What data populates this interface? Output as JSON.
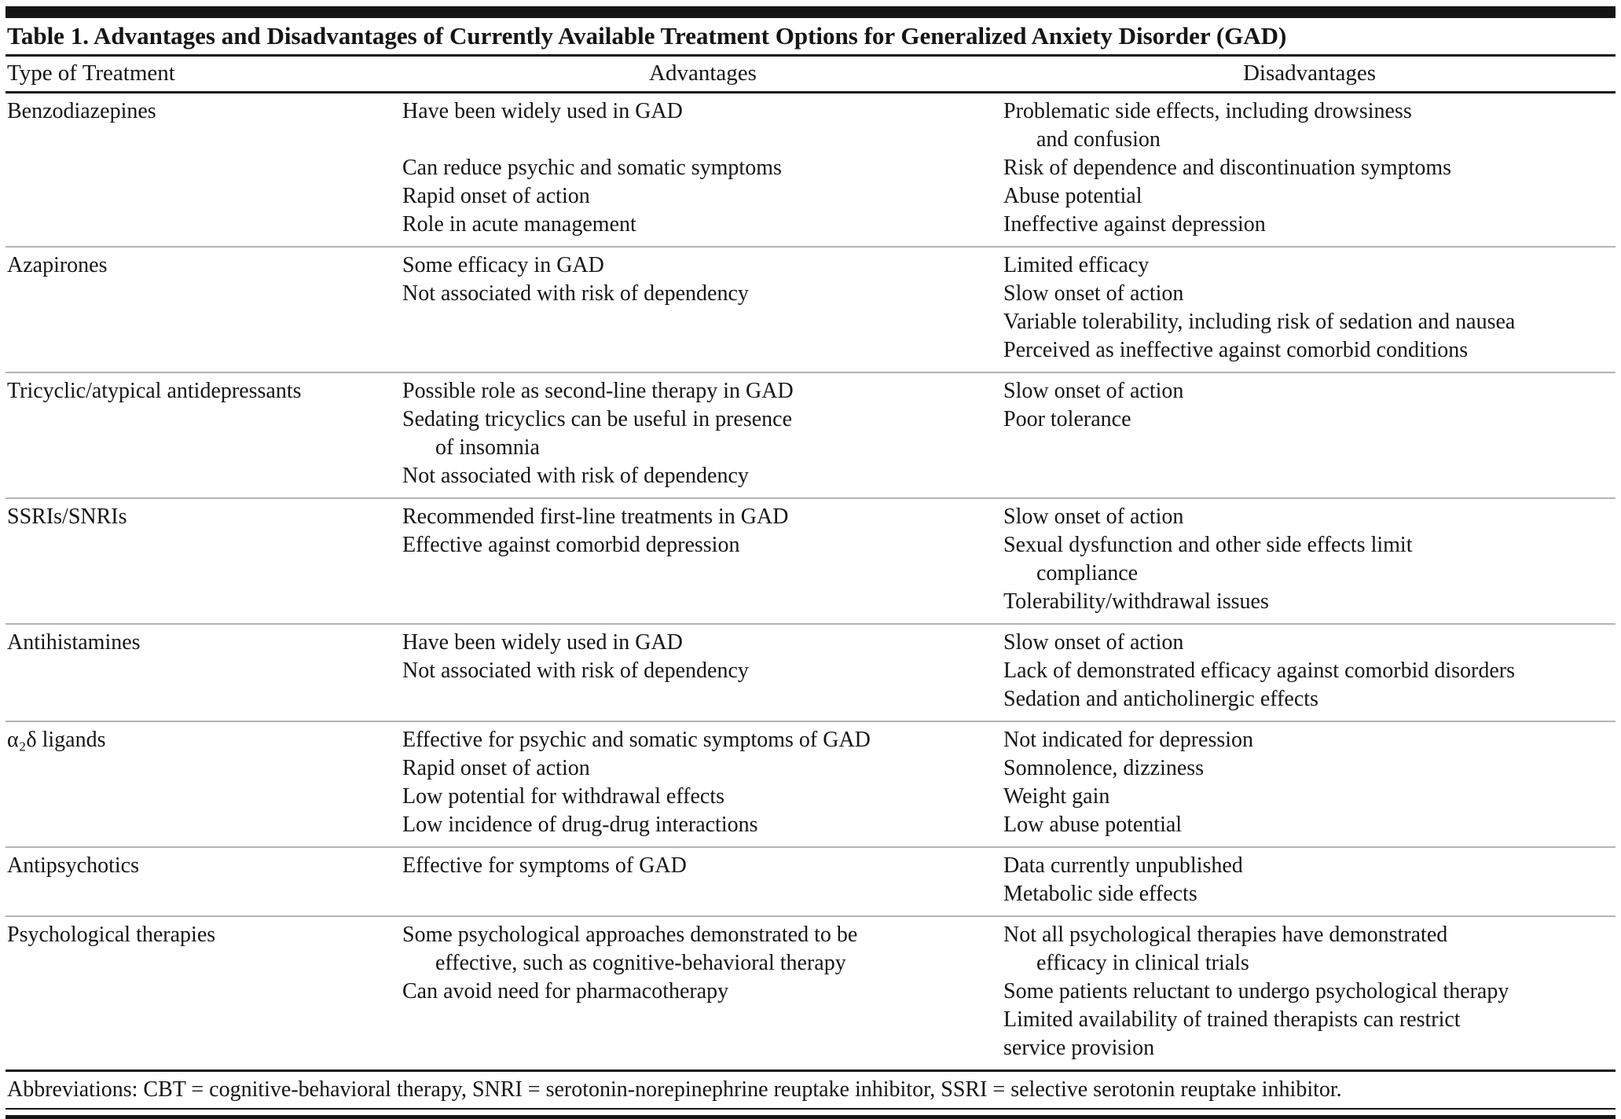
{
  "colors": {
    "text": "#151515",
    "rule_dark": "#151515",
    "rule_light": "#b4b4b4"
  },
  "table": {
    "title": "Table 1. Advantages and Disadvantages of Currently Available Treatment Options for Generalized Anxiety Disorder (GAD)",
    "columns": [
      "Type of Treatment",
      "Advantages",
      "Disadvantages"
    ],
    "rows": [
      {
        "treatment": "Benzodiazepines",
        "advantages": [
          {
            "text": "Have been widely used in GAD"
          },
          {
            "text": ""
          },
          {
            "text": "Can reduce psychic and somatic symptoms"
          },
          {
            "text": "Rapid onset of action"
          },
          {
            "text": "Role in acute management"
          }
        ],
        "disadvantages": [
          {
            "text": "Problematic side effects, including drowsiness"
          },
          {
            "text": "and confusion",
            "indent": true
          },
          {
            "text": "Risk of dependence and discontinuation symptoms"
          },
          {
            "text": "Abuse potential"
          },
          {
            "text": "Ineffective against depression"
          }
        ]
      },
      {
        "treatment": "Azapirones",
        "advantages": [
          {
            "text": "Some efficacy in GAD"
          },
          {
            "text": "Not associated with risk of dependency"
          }
        ],
        "disadvantages": [
          {
            "text": "Limited efficacy"
          },
          {
            "text": "Slow onset of action"
          },
          {
            "text": "Variable tolerability, including risk of sedation and nausea"
          },
          {
            "text": "Perceived as ineffective against comorbid conditions"
          }
        ]
      },
      {
        "treatment": "Tricyclic/atypical antidepressants",
        "advantages": [
          {
            "text": "Possible role as second-line therapy in GAD"
          },
          {
            "text": "Sedating tricyclics can be useful in presence"
          },
          {
            "text": "of insomnia",
            "indent": true
          },
          {
            "text": "Not associated with risk of dependency"
          }
        ],
        "disadvantages": [
          {
            "text": "Slow onset of action"
          },
          {
            "text": "Poor tolerance"
          }
        ]
      },
      {
        "treatment": "SSRIs/SNRIs",
        "advantages": [
          {
            "text": "Recommended first-line treatments in GAD"
          },
          {
            "text": "Effective against comorbid depression"
          }
        ],
        "disadvantages": [
          {
            "text": "Slow onset of action"
          },
          {
            "text": "Sexual dysfunction and other side effects limit"
          },
          {
            "text": "compliance",
            "indent": true
          },
          {
            "text": "Tolerability/withdrawal issues"
          }
        ]
      },
      {
        "treatment": "Antihistamines",
        "advantages": [
          {
            "text": "Have been widely used in GAD"
          },
          {
            "text": "Not associated with risk of dependency"
          }
        ],
        "disadvantages": [
          {
            "text": "Slow onset of action"
          },
          {
            "text": "Lack of demonstrated efficacy against comorbid disorders"
          },
          {
            "text": "Sedation and anticholinergic effects"
          }
        ]
      },
      {
        "treatment": "α₂δ ligands",
        "advantages": [
          {
            "text": "Effective for psychic and somatic symptoms of GAD"
          },
          {
            "text": "Rapid onset of action"
          },
          {
            "text": "Low potential for withdrawal effects"
          },
          {
            "text": "Low incidence of drug-drug interactions"
          }
        ],
        "disadvantages": [
          {
            "text": "Not indicated for depression"
          },
          {
            "text": "Somnolence, dizziness"
          },
          {
            "text": "Weight gain"
          },
          {
            "text": "Low abuse potential"
          }
        ]
      },
      {
        "treatment": "Antipsychotics",
        "advantages": [
          {
            "text": "Effective for symptoms of GAD"
          }
        ],
        "disadvantages": [
          {
            "text": "Data currently unpublished"
          },
          {
            "text": "Metabolic side effects"
          }
        ]
      },
      {
        "treatment": "Psychological therapies",
        "advantages": [
          {
            "text": "Some psychological approaches demonstrated to be"
          },
          {
            "text": "effective, such as cognitive-behavioral therapy",
            "indent": true
          },
          {
            "text": "Can avoid need for pharmacotherapy"
          }
        ],
        "disadvantages": [
          {
            "text": "Not all psychological therapies have demonstrated"
          },
          {
            "text": "efficacy in clinical trials",
            "indent": true
          },
          {
            "text": "Some patients reluctant to undergo psychological therapy"
          },
          {
            "text": "Limited availability of trained therapists can restrict"
          },
          {
            "text": "service provision"
          }
        ]
      }
    ],
    "footnote": "Abbreviations: CBT = cognitive-behavioral therapy, SNRI = serotonin-norepinephrine reuptake inhibitor, SSRI = selective serotonin reuptake inhibitor."
  }
}
